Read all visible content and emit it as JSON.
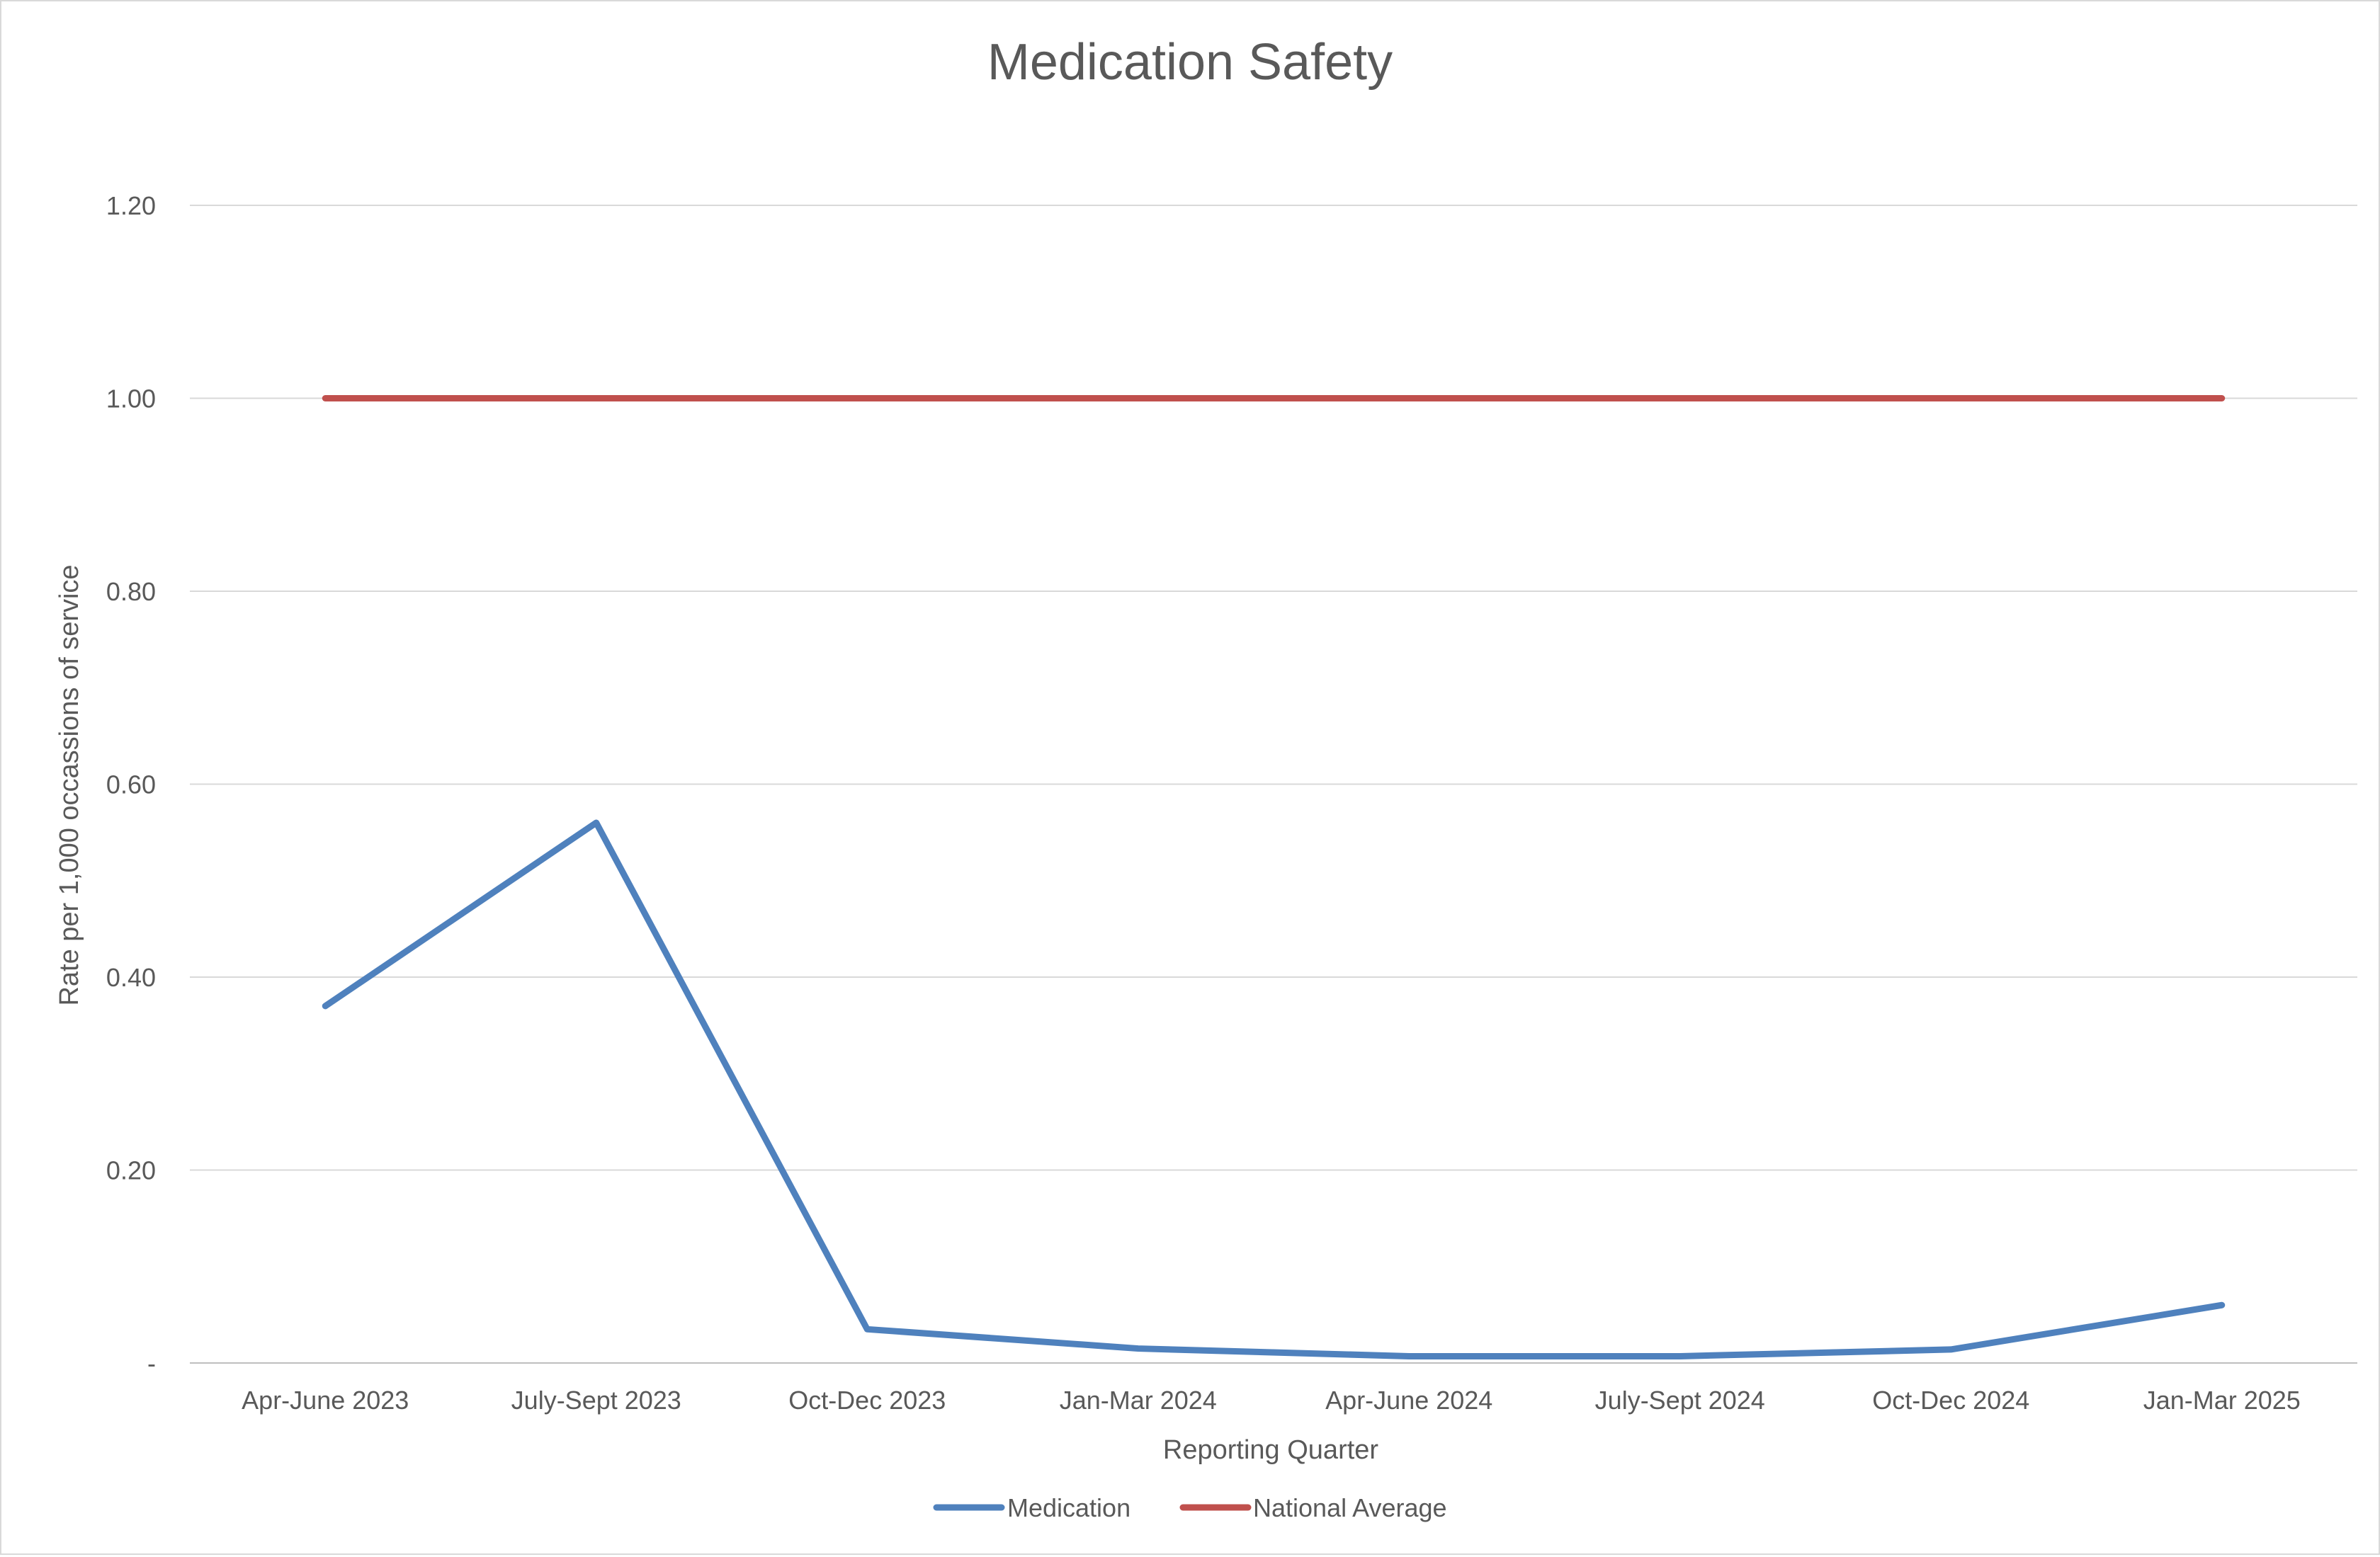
{
  "chart_data": {
    "type": "line",
    "title": "Medication Safety",
    "xlabel": "Reporting Quarter",
    "ylabel": "Rate per 1,000 occassions of service",
    "categories": [
      "Apr-June 2023",
      "July-Sept 2023",
      "Oct-Dec 2023",
      "Jan-Mar 2024",
      "Apr-June 2024",
      "July-Sept 2024",
      "Oct-Dec 2024",
      "Jan-Mar 2025"
    ],
    "series": [
      {
        "name": "Medication",
        "color": "#4f81bd",
        "values": [
          0.37,
          0.56,
          0.035,
          0.015,
          0.007,
          0.007,
          0.014,
          0.06
        ]
      },
      {
        "name": "National Average",
        "color": "#c0504d",
        "values": [
          1.0,
          1.0,
          1.0,
          1.0,
          1.0,
          1.0,
          1.0,
          1.0
        ]
      }
    ],
    "ylim": [
      0,
      1.2
    ],
    "yticks": [
      0,
      0.2,
      0.4,
      0.6,
      0.8,
      1.0,
      1.2
    ],
    "ytick_labels": [
      "-",
      "0.20",
      "0.40",
      "0.60",
      "0.80",
      "1.00",
      "1.20"
    ],
    "grid": true,
    "legend_position": "bottom-center"
  }
}
